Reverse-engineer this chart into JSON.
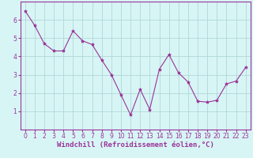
{
  "x": [
    0,
    1,
    2,
    3,
    4,
    5,
    6,
    7,
    8,
    9,
    10,
    11,
    12,
    13,
    14,
    15,
    16,
    17,
    18,
    19,
    20,
    21,
    22,
    23
  ],
  "y": [
    6.5,
    5.7,
    4.7,
    4.3,
    4.3,
    5.4,
    4.85,
    4.65,
    3.8,
    3.0,
    1.9,
    0.8,
    2.2,
    1.1,
    3.3,
    4.1,
    3.1,
    2.6,
    1.55,
    1.5,
    1.6,
    2.5,
    2.65,
    3.4
  ],
  "line_color": "#993399",
  "marker": "*",
  "marker_size": 3,
  "bg_color": "#d8f5f5",
  "grid_color": "#b0d8d8",
  "xlabel": "Windchill (Refroidissement éolien,°C)",
  "xlabel_color": "#993399",
  "ylim": [
    0,
    7
  ],
  "xlim": [
    -0.5,
    23.5
  ],
  "yticks": [
    1,
    2,
    3,
    4,
    5,
    6
  ],
  "xticks": [
    0,
    1,
    2,
    3,
    4,
    5,
    6,
    7,
    8,
    9,
    10,
    11,
    12,
    13,
    14,
    15,
    16,
    17,
    18,
    19,
    20,
    21,
    22,
    23
  ],
  "tick_fontsize": 5.5,
  "xlabel_fontsize": 6.5,
  "axis_color": "#993399",
  "spine_color": "#993399"
}
